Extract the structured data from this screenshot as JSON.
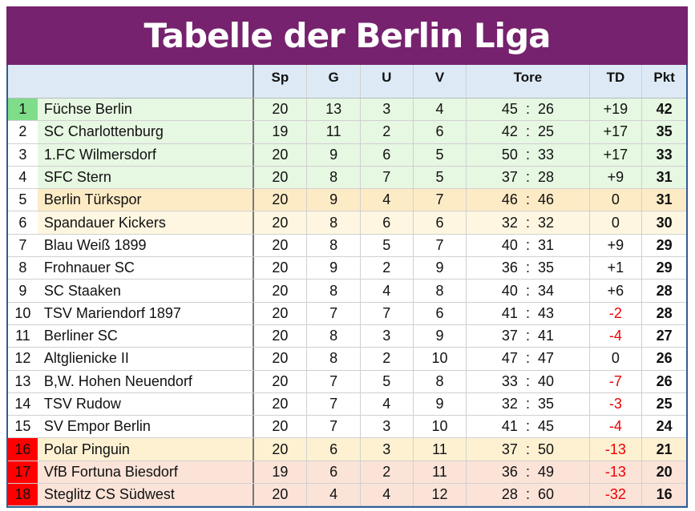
{
  "title": "Tabelle der Berlin Liga",
  "headers": {
    "sp": "Sp",
    "g": "G",
    "u": "U",
    "v": "V",
    "tore": "Tore",
    "td": "TD",
    "pkt": "Pkt"
  },
  "colors": {
    "title_bg": "#76226E",
    "promotion": "#E6F7E2",
    "relegation_rank": "#FF0000",
    "champion_rank": "#7FDD8A"
  },
  "rows": [
    {
      "rank": "1",
      "team": "Füchse Berlin",
      "sp": "20",
      "g": "13",
      "u": "3",
      "v": "4",
      "tore": "45  :  26",
      "td": "+19",
      "pkt": "42"
    },
    {
      "rank": "2",
      "team": "SC Charlottenburg",
      "sp": "19",
      "g": "11",
      "u": "2",
      "v": "6",
      "tore": "42  :  25",
      "td": "+17",
      "pkt": "35"
    },
    {
      "rank": "3",
      "team": "1.FC Wilmersdorf",
      "sp": "20",
      "g": "9",
      "u": "6",
      "v": "5",
      "tore": "50  :  33",
      "td": "+17",
      "pkt": "33"
    },
    {
      "rank": "4",
      "team": "SFC Stern",
      "sp": "20",
      "g": "8",
      "u": "7",
      "v": "5",
      "tore": "37  :  28",
      "td": "+9",
      "pkt": "31"
    },
    {
      "rank": "5",
      "team": "Berlin Türkspor",
      "sp": "20",
      "g": "9",
      "u": "4",
      "v": "7",
      "tore": "46  :  46",
      "td": "0",
      "pkt": "31"
    },
    {
      "rank": "6",
      "team": "Spandauer Kickers",
      "sp": "20",
      "g": "8",
      "u": "6",
      "v": "6",
      "tore": "32  :  32",
      "td": "0",
      "pkt": "30"
    },
    {
      "rank": "7",
      "team": "Blau Weiß 1899",
      "sp": "20",
      "g": "8",
      "u": "5",
      "v": "7",
      "tore": "40  :  31",
      "td": "+9",
      "pkt": "29"
    },
    {
      "rank": "8",
      "team": "Frohnauer SC",
      "sp": "20",
      "g": "9",
      "u": "2",
      "v": "9",
      "tore": "36  :  35",
      "td": "+1",
      "pkt": "29"
    },
    {
      "rank": "9",
      "team": "SC Staaken",
      "sp": "20",
      "g": "8",
      "u": "4",
      "v": "8",
      "tore": "40  :  34",
      "td": "+6",
      "pkt": "28"
    },
    {
      "rank": "10",
      "team": "TSV Mariendorf 1897",
      "sp": "20",
      "g": "7",
      "u": "7",
      "v": "6",
      "tore": "41  :  43",
      "td": "-2",
      "pkt": "28"
    },
    {
      "rank": "11",
      "team": "Berliner SC",
      "sp": "20",
      "g": "8",
      "u": "3",
      "v": "9",
      "tore": "37  :  41",
      "td": "-4",
      "pkt": "27"
    },
    {
      "rank": "12",
      "team": "Altglienicke II",
      "sp": "20",
      "g": "8",
      "u": "2",
      "v": "10",
      "tore": "47  :  47",
      "td": "0",
      "pkt": "26"
    },
    {
      "rank": "13",
      "team": "B,W. Hohen Neuendorf",
      "sp": "20",
      "g": "7",
      "u": "5",
      "v": "8",
      "tore": "33  :  40",
      "td": "-7",
      "pkt": "26"
    },
    {
      "rank": "14",
      "team": "TSV Rudow",
      "sp": "20",
      "g": "7",
      "u": "4",
      "v": "9",
      "tore": "32  :  35",
      "td": "-3",
      "pkt": "25"
    },
    {
      "rank": "15",
      "team": "SV Empor Berlin",
      "sp": "20",
      "g": "7",
      "u": "3",
      "v": "10",
      "tore": "41  :  45",
      "td": "-4",
      "pkt": "24"
    },
    {
      "rank": "16",
      "team": "Polar Pinguin",
      "sp": "20",
      "g": "6",
      "u": "3",
      "v": "11",
      "tore": "37  :  50",
      "td": "-13",
      "pkt": "21"
    },
    {
      "rank": "17",
      "team": "VfB Fortuna Biesdorf",
      "sp": "19",
      "g": "6",
      "u": "2",
      "v": "11",
      "tore": "36  :  49",
      "td": "-13",
      "pkt": "20"
    },
    {
      "rank": "18",
      "team": "Steglitz CS Südwest",
      "sp": "20",
      "g": "4",
      "u": "4",
      "v": "12",
      "tore": "28  :  60",
      "td": "-32",
      "pkt": "16"
    }
  ]
}
